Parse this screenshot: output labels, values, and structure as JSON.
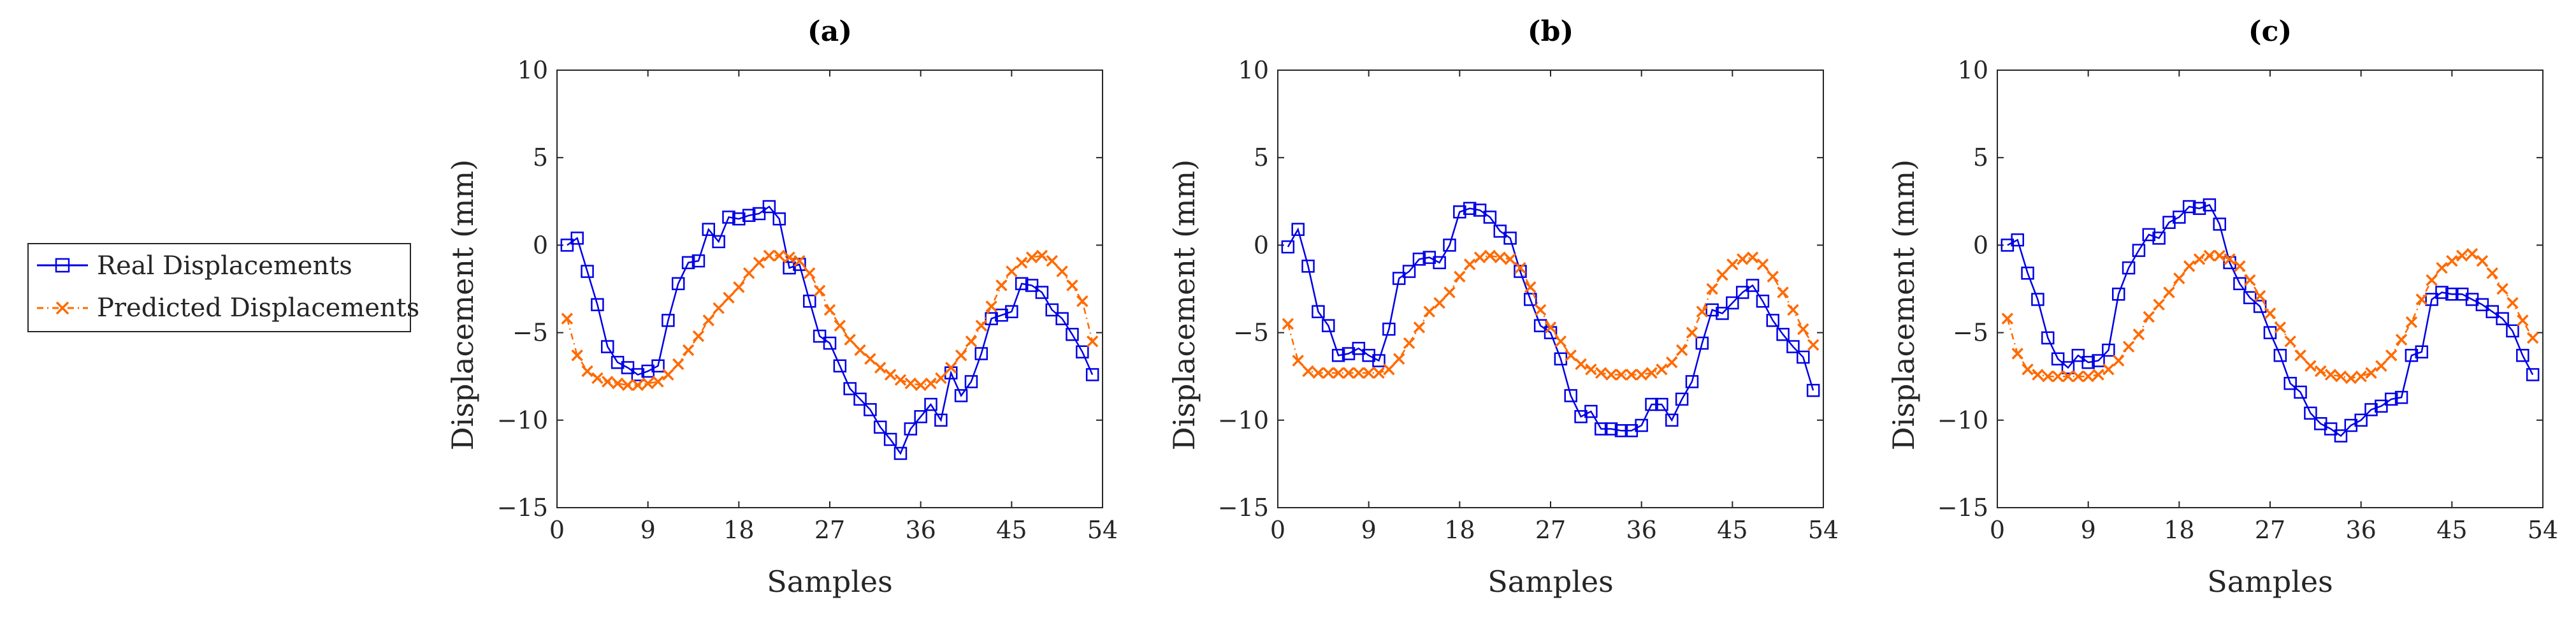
{
  "colors": {
    "real": "#0000e6",
    "predicted": "#ff6a00",
    "axis": "#262626"
  },
  "legend": {
    "entries": [
      "Real Displacements",
      "Predicted Displacements"
    ]
  },
  "chart_data": [
    {
      "type": "line",
      "title": "(a)",
      "xlabel": "Samples",
      "ylabel": "Displacement (mm)",
      "xlim": [
        0,
        54
      ],
      "ylim": [
        -15,
        10
      ],
      "xticks": [
        0,
        9,
        18,
        27,
        36,
        45,
        54
      ],
      "yticks": [
        10,
        5,
        0,
        -5,
        -10,
        -15
      ],
      "series": [
        {
          "name": "Real Displacements",
          "marker": "square",
          "x": [
            1,
            2,
            3,
            4,
            5,
            6,
            7,
            8,
            9,
            10,
            11,
            12,
            13,
            14,
            15,
            16,
            17,
            18,
            19,
            20,
            21,
            22,
            23,
            24,
            25,
            26,
            27,
            28,
            29,
            30,
            31,
            32,
            33,
            34,
            35,
            36,
            37,
            38,
            39,
            40,
            41,
            42,
            43,
            44,
            45,
            46,
            47,
            48,
            49,
            50,
            51,
            52,
            53
          ],
          "values": [
            0.0,
            0.4,
            -1.5,
            -3.4,
            -5.8,
            -6.7,
            -7.0,
            -7.4,
            -7.2,
            -6.9,
            -4.3,
            -2.2,
            -1.0,
            -0.9,
            0.9,
            0.2,
            1.6,
            1.5,
            1.7,
            1.8,
            2.2,
            1.5,
            -1.3,
            -1.1,
            -3.2,
            -5.2,
            -5.6,
            -6.9,
            -8.2,
            -8.8,
            -9.4,
            -10.4,
            -11.1,
            -11.9,
            -10.5,
            -9.8,
            -9.1,
            -10.0,
            -7.3,
            -8.6,
            -7.8,
            -6.2,
            -4.2,
            -4.0,
            -3.8,
            -2.2,
            -2.3,
            -2.7,
            -3.7,
            -4.2,
            -5.1,
            -6.1,
            -7.4
          ]
        },
        {
          "name": "Predicted Displacements",
          "marker": "x",
          "x": [
            1,
            2,
            3,
            4,
            5,
            6,
            7,
            8,
            9,
            10,
            11,
            12,
            13,
            14,
            15,
            16,
            17,
            18,
            19,
            20,
            21,
            22,
            23,
            24,
            25,
            26,
            27,
            28,
            29,
            30,
            31,
            32,
            33,
            34,
            35,
            36,
            37,
            38,
            39,
            40,
            41,
            42,
            43,
            44,
            45,
            46,
            47,
            48,
            49,
            50,
            51,
            52,
            53
          ],
          "values": [
            -4.2,
            -6.3,
            -7.2,
            -7.6,
            -7.8,
            -7.9,
            -8.0,
            -8.0,
            -7.9,
            -7.8,
            -7.4,
            -6.8,
            -6.0,
            -5.2,
            -4.3,
            -3.6,
            -3.0,
            -2.4,
            -1.6,
            -1.0,
            -0.6,
            -0.6,
            -0.7,
            -0.9,
            -1.6,
            -2.6,
            -3.7,
            -4.6,
            -5.4,
            -6.0,
            -6.5,
            -7.0,
            -7.4,
            -7.7,
            -7.9,
            -8.0,
            -7.9,
            -7.6,
            -7.0,
            -6.3,
            -5.5,
            -4.6,
            -3.5,
            -2.3,
            -1.5,
            -1.0,
            -0.7,
            -0.6,
            -0.9,
            -1.5,
            -2.3,
            -3.2,
            -5.5
          ]
        }
      ]
    },
    {
      "type": "line",
      "title": "(b)",
      "xlabel": "Samples",
      "ylabel": "Displacement (mm)",
      "xlim": [
        0,
        54
      ],
      "ylim": [
        -15,
        10
      ],
      "xticks": [
        0,
        9,
        18,
        27,
        36,
        45,
        54
      ],
      "yticks": [
        10,
        5,
        0,
        -5,
        -10,
        -15
      ],
      "series": [
        {
          "name": "Real Displacements",
          "marker": "square",
          "x": [
            1,
            2,
            3,
            4,
            5,
            6,
            7,
            8,
            9,
            10,
            11,
            12,
            13,
            14,
            15,
            16,
            17,
            18,
            19,
            20,
            21,
            22,
            23,
            24,
            25,
            26,
            27,
            28,
            29,
            30,
            31,
            32,
            33,
            34,
            35,
            36,
            37,
            38,
            39,
            40,
            41,
            42,
            43,
            44,
            45,
            46,
            47,
            48,
            49,
            50,
            51,
            52,
            53
          ],
          "values": [
            -0.1,
            0.9,
            -1.2,
            -3.8,
            -4.6,
            -6.3,
            -6.2,
            -5.9,
            -6.3,
            -6.6,
            -4.8,
            -1.9,
            -1.5,
            -0.8,
            -0.7,
            -1.0,
            0.0,
            1.9,
            2.1,
            2.0,
            1.6,
            0.8,
            0.4,
            -1.5,
            -3.1,
            -4.6,
            -5.0,
            -6.5,
            -8.6,
            -9.8,
            -9.5,
            -10.5,
            -10.5,
            -10.6,
            -10.6,
            -10.3,
            -9.1,
            -9.1,
            -10.0,
            -8.8,
            -7.8,
            -5.6,
            -3.7,
            -3.9,
            -3.3,
            -2.7,
            -2.3,
            -3.2,
            -4.3,
            -5.1,
            -5.8,
            -6.4,
            -8.3
          ]
        },
        {
          "name": "Predicted Displacements",
          "marker": "x",
          "x": [
            1,
            2,
            3,
            4,
            5,
            6,
            7,
            8,
            9,
            10,
            11,
            12,
            13,
            14,
            15,
            16,
            17,
            18,
            19,
            20,
            21,
            22,
            23,
            24,
            25,
            26,
            27,
            28,
            29,
            30,
            31,
            32,
            33,
            34,
            35,
            36,
            37,
            38,
            39,
            40,
            41,
            42,
            43,
            44,
            45,
            46,
            47,
            48,
            49,
            50,
            51,
            52,
            53
          ],
          "values": [
            -4.5,
            -6.6,
            -7.2,
            -7.3,
            -7.3,
            -7.3,
            -7.3,
            -7.3,
            -7.3,
            -7.3,
            -7.1,
            -6.5,
            -5.6,
            -4.7,
            -3.8,
            -3.3,
            -2.7,
            -1.8,
            -1.1,
            -0.7,
            -0.6,
            -0.7,
            -0.8,
            -1.3,
            -2.4,
            -3.7,
            -4.7,
            -5.5,
            -6.3,
            -6.8,
            -7.1,
            -7.3,
            -7.4,
            -7.4,
            -7.4,
            -7.4,
            -7.3,
            -7.1,
            -6.7,
            -6.0,
            -5.0,
            -3.8,
            -2.5,
            -1.7,
            -1.1,
            -0.8,
            -0.7,
            -1.1,
            -1.8,
            -2.7,
            -3.7,
            -4.8,
            -5.7
          ]
        }
      ]
    },
    {
      "type": "line",
      "title": "(c)",
      "xlabel": "Samples",
      "ylabel": "Displacement (mm)",
      "xlim": [
        0,
        54
      ],
      "ylim": [
        -15,
        10
      ],
      "xticks": [
        0,
        9,
        18,
        27,
        36,
        45,
        54
      ],
      "yticks": [
        10,
        5,
        0,
        -5,
        -10,
        -15
      ],
      "series": [
        {
          "name": "Real Displacements",
          "marker": "square",
          "x": [
            1,
            2,
            3,
            4,
            5,
            6,
            7,
            8,
            9,
            10,
            11,
            12,
            13,
            14,
            15,
            16,
            17,
            18,
            19,
            20,
            21,
            22,
            23,
            24,
            25,
            26,
            27,
            28,
            29,
            30,
            31,
            32,
            33,
            34,
            35,
            36,
            37,
            38,
            39,
            40,
            41,
            42,
            43,
            44,
            45,
            46,
            47,
            48,
            49,
            50,
            51,
            52,
            53
          ],
          "values": [
            0.0,
            0.3,
            -1.6,
            -3.1,
            -5.3,
            -6.5,
            -7.0,
            -6.3,
            -6.7,
            -6.6,
            -6.0,
            -2.8,
            -1.3,
            -0.3,
            0.6,
            0.4,
            1.3,
            1.6,
            2.2,
            2.1,
            2.3,
            1.2,
            -1.0,
            -2.2,
            -3.0,
            -3.5,
            -5.0,
            -6.3,
            -7.9,
            -8.4,
            -9.6,
            -10.2,
            -10.5,
            -10.9,
            -10.3,
            -10.0,
            -9.4,
            -9.2,
            -8.8,
            -8.7,
            -6.3,
            -6.1,
            -3.1,
            -2.7,
            -2.8,
            -2.8,
            -3.1,
            -3.4,
            -3.8,
            -4.2,
            -4.9,
            -6.3,
            -7.4
          ]
        },
        {
          "name": "Predicted Displacements",
          "marker": "x",
          "x": [
            1,
            2,
            3,
            4,
            5,
            6,
            7,
            8,
            9,
            10,
            11,
            12,
            13,
            14,
            15,
            16,
            17,
            18,
            19,
            20,
            21,
            22,
            23,
            24,
            25,
            26,
            27,
            28,
            29,
            30,
            31,
            32,
            33,
            34,
            35,
            36,
            37,
            38,
            39,
            40,
            41,
            42,
            43,
            44,
            45,
            46,
            47,
            48,
            49,
            50,
            51,
            52,
            53
          ],
          "values": [
            -4.2,
            -6.2,
            -7.1,
            -7.4,
            -7.5,
            -7.5,
            -7.5,
            -7.5,
            -7.5,
            -7.4,
            -7.1,
            -6.6,
            -5.8,
            -5.1,
            -4.1,
            -3.4,
            -2.7,
            -1.9,
            -1.2,
            -0.8,
            -0.6,
            -0.6,
            -0.8,
            -1.2,
            -2.0,
            -2.9,
            -3.9,
            -4.7,
            -5.5,
            -6.3,
            -6.9,
            -7.2,
            -7.4,
            -7.5,
            -7.6,
            -7.5,
            -7.3,
            -6.9,
            -6.3,
            -5.4,
            -4.4,
            -3.1,
            -2.0,
            -1.3,
            -0.9,
            -0.6,
            -0.5,
            -0.9,
            -1.6,
            -2.5,
            -3.3,
            -4.3,
            -5.3
          ]
        }
      ]
    }
  ]
}
